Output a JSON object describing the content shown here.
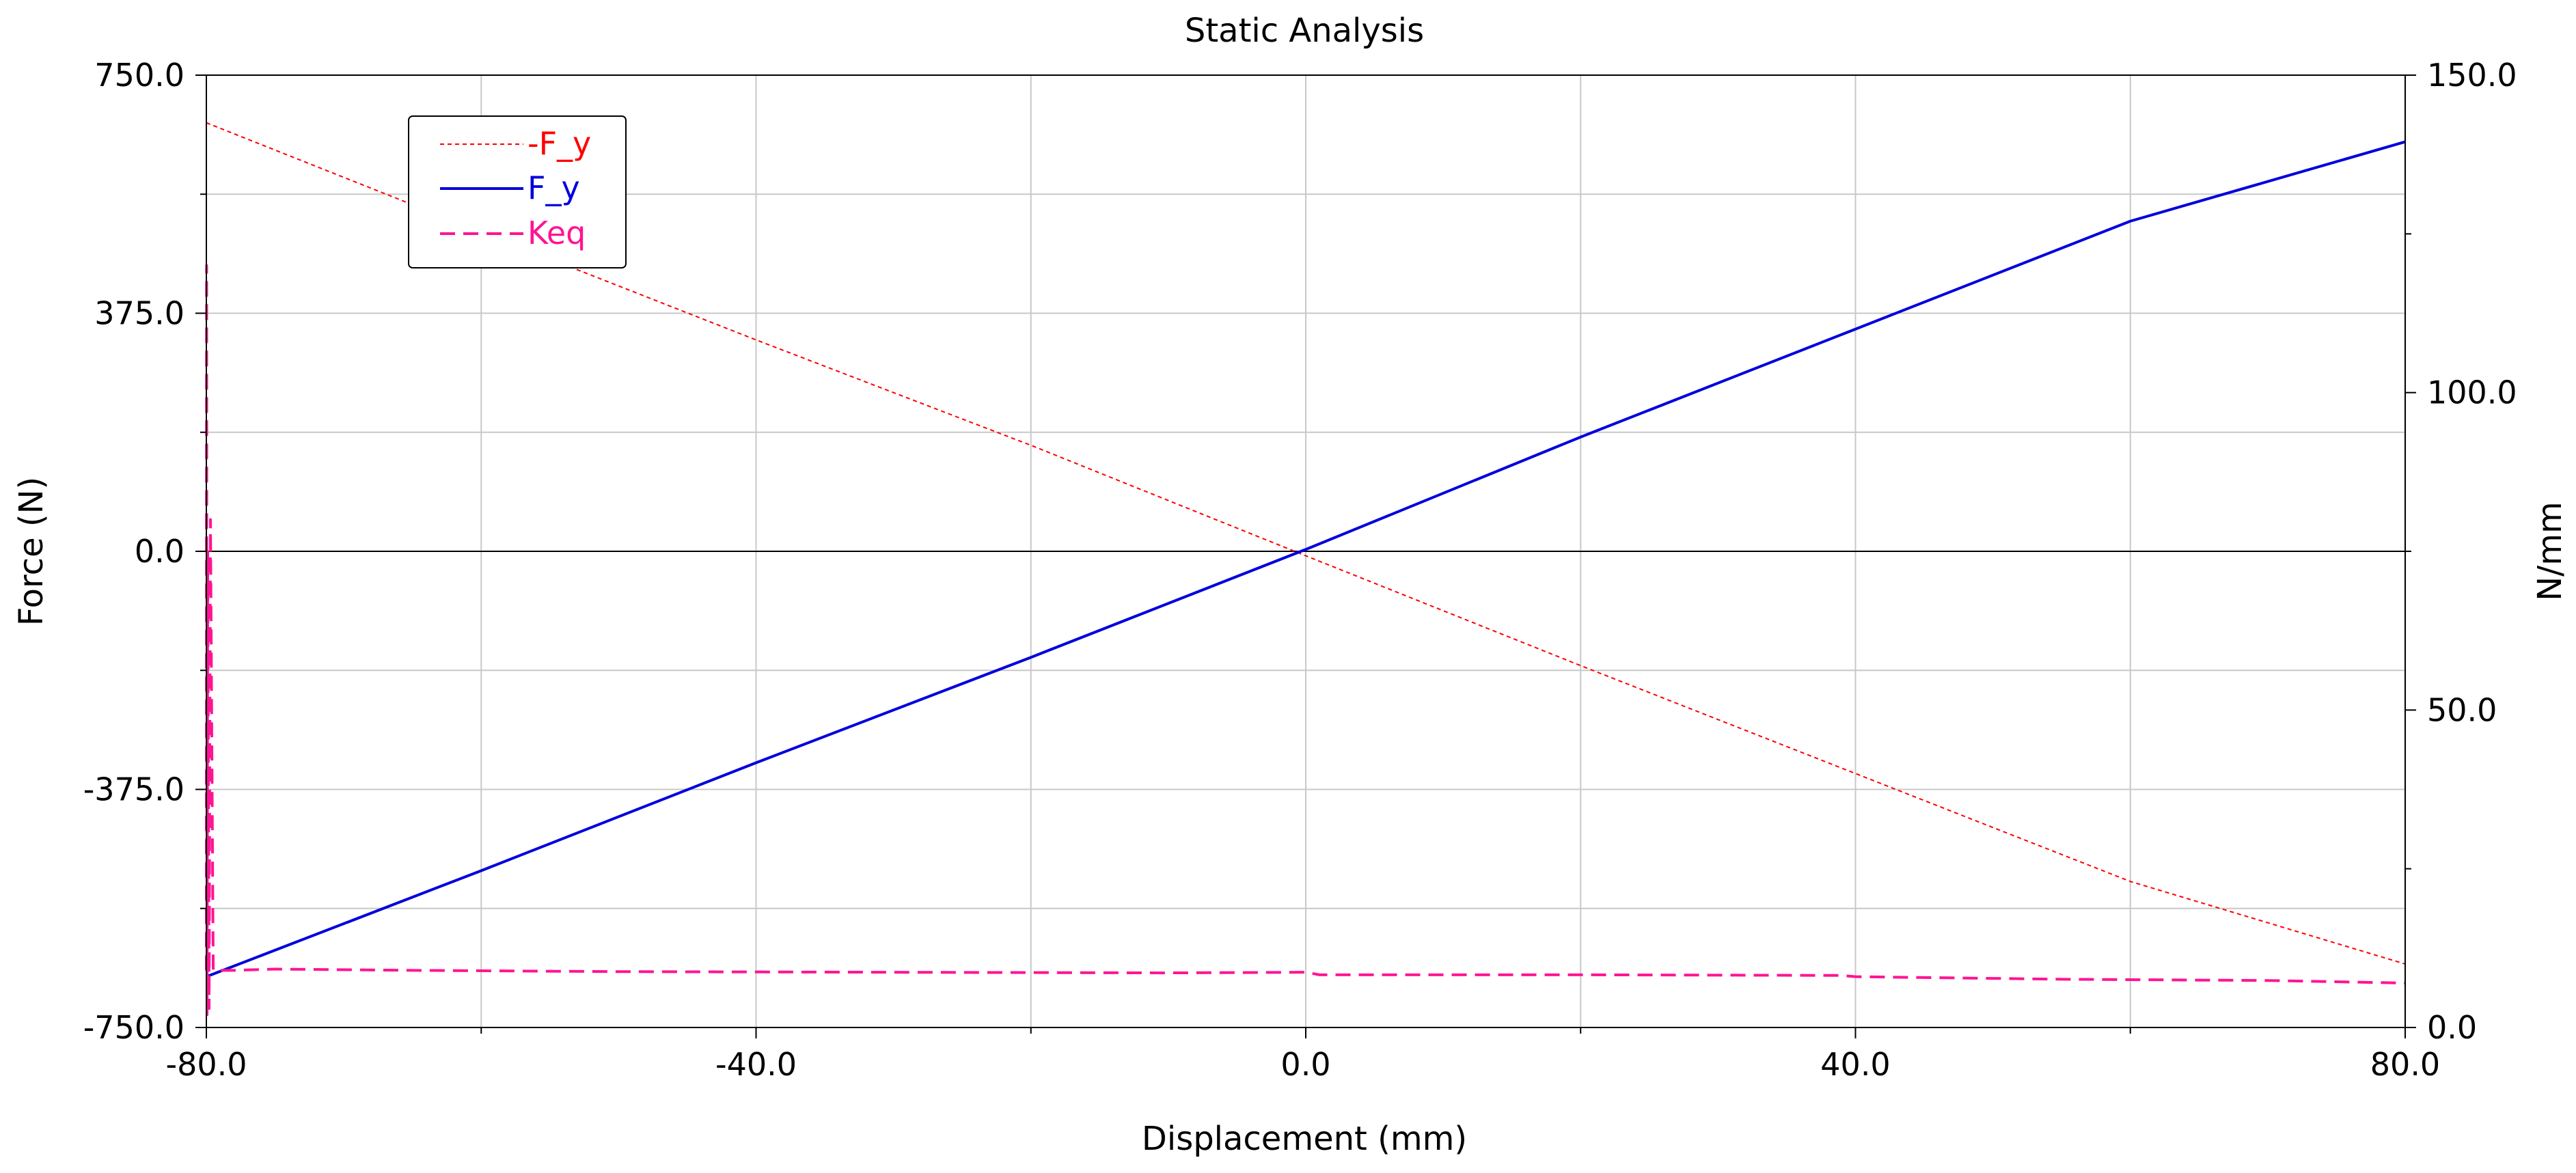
{
  "chart_data": {
    "type": "line",
    "title": "Static Analysis",
    "xlabel": "Displacement (mm)",
    "ylabel": "Force (N)",
    "y2label": "N/mm",
    "xlim": [
      -80,
      80
    ],
    "ylim": [
      -750,
      750
    ],
    "y2lim": [
      0,
      150
    ],
    "x_ticks": [
      "-80.0",
      "-40.0",
      "0.0",
      "40.0",
      "80.0"
    ],
    "y_ticks": [
      "750.0",
      "375.0",
      "0.0",
      "-375.0",
      "-750.0"
    ],
    "y2_ticks": [
      "150.0",
      "100.0",
      "50.0",
      "0.0"
    ],
    "grid": true,
    "legend_position": "top-left",
    "series": [
      {
        "name": "-F_y",
        "axis": "left",
        "color": "#ff0000",
        "style": "dotted",
        "x": [
          -80,
          -60,
          -40,
          -20,
          0,
          20,
          40,
          60,
          80
        ],
        "y": [
          675,
          503,
          333,
          167,
          -7,
          -180,
          -350,
          -520,
          -650
        ]
      },
      {
        "name": "F_y",
        "axis": "left",
        "color": "#0000dd",
        "style": "solid",
        "x": [
          -80,
          -60,
          -40,
          -20,
          0,
          20,
          40,
          60,
          80
        ],
        "y": [
          -670,
          -503,
          -333,
          -167,
          3,
          180,
          350,
          520,
          645
        ]
      },
      {
        "name": "Keq",
        "axis": "right",
        "color": "#ff1493",
        "style": "dashed",
        "x": [
          -80,
          -79.98,
          -79.95,
          -79.9,
          -79.8,
          -79.7,
          -79.5,
          -78,
          -75,
          -65,
          -50,
          -30,
          -10,
          0,
          1,
          20,
          39,
          40,
          55,
          70,
          80
        ],
        "y": [
          9,
          120,
          2,
          75,
          3,
          80,
          9,
          9,
          9.2,
          9,
          8.8,
          8.7,
          8.6,
          8.7,
          8.3,
          8.3,
          8.2,
          8.0,
          7.6,
          7.4,
          7.0
        ]
      }
    ]
  }
}
